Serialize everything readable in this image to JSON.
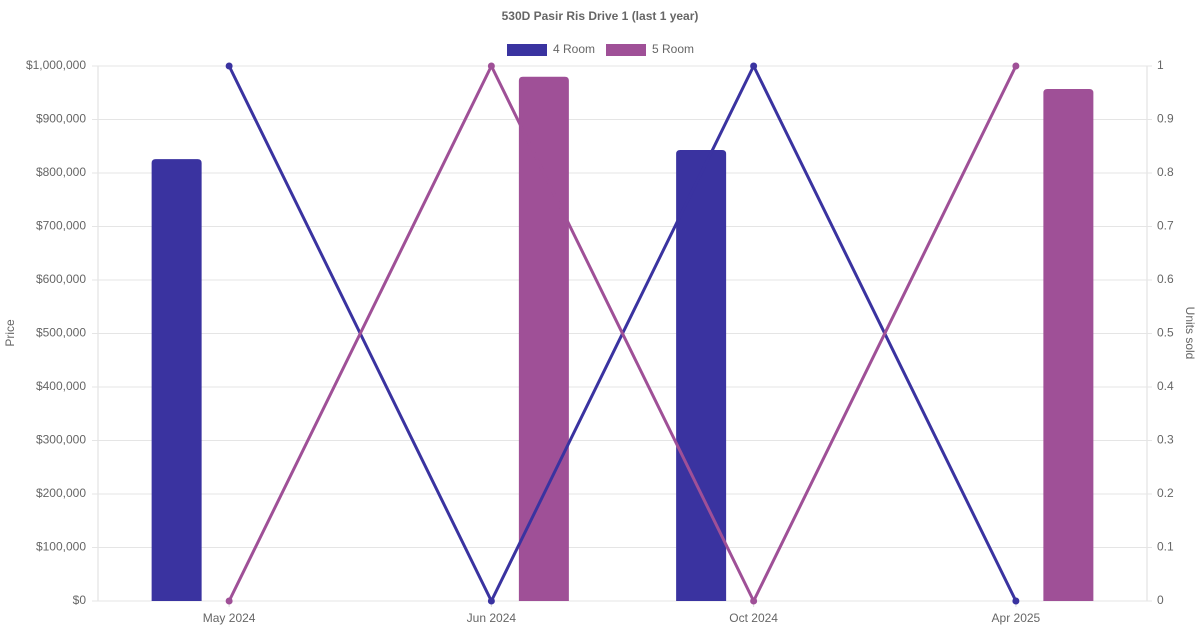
{
  "chart_data": {
    "type": "bar-line",
    "title": "530D Pasir Ris Drive 1 (last 1 year)",
    "categories": [
      "May 2024",
      "Jun 2024",
      "Oct 2024",
      "Apr 2025"
    ],
    "series": [
      {
        "name": "4 Room",
        "color": "#3a33a0",
        "values": [
          826000,
          null,
          843000,
          null
        ],
        "units": [
          1,
          0,
          1,
          0
        ]
      },
      {
        "name": "5 Room",
        "color": "#9f5097",
        "values": [
          null,
          980000,
          null,
          957000
        ],
        "units": [
          0,
          1,
          0,
          1
        ]
      }
    ],
    "ylabel": "Price",
    "y2label": "Units sold",
    "ylim": [
      0,
      1000000
    ],
    "yticks": [
      {
        "value": 0,
        "label": "$0"
      },
      {
        "value": 100000,
        "label": "$100,000"
      },
      {
        "value": 200000,
        "label": "$200,000"
      },
      {
        "value": 300000,
        "label": "$300,000"
      },
      {
        "value": 400000,
        "label": "$400,000"
      },
      {
        "value": 500000,
        "label": "$500,000"
      },
      {
        "value": 600000,
        "label": "$600,000"
      },
      {
        "value": 700000,
        "label": "$700,000"
      },
      {
        "value": 800000,
        "label": "$800,000"
      },
      {
        "value": 900000,
        "label": "$900,000"
      },
      {
        "value": 1000000,
        "label": "$1,000,000"
      }
    ],
    "y2lim": [
      0,
      1
    ],
    "y2ticks": [
      0,
      0.1,
      0.2,
      0.3,
      0.4,
      0.5,
      0.6,
      0.7,
      0.8,
      0.9,
      1
    ],
    "grid": true,
    "legend": "top"
  }
}
